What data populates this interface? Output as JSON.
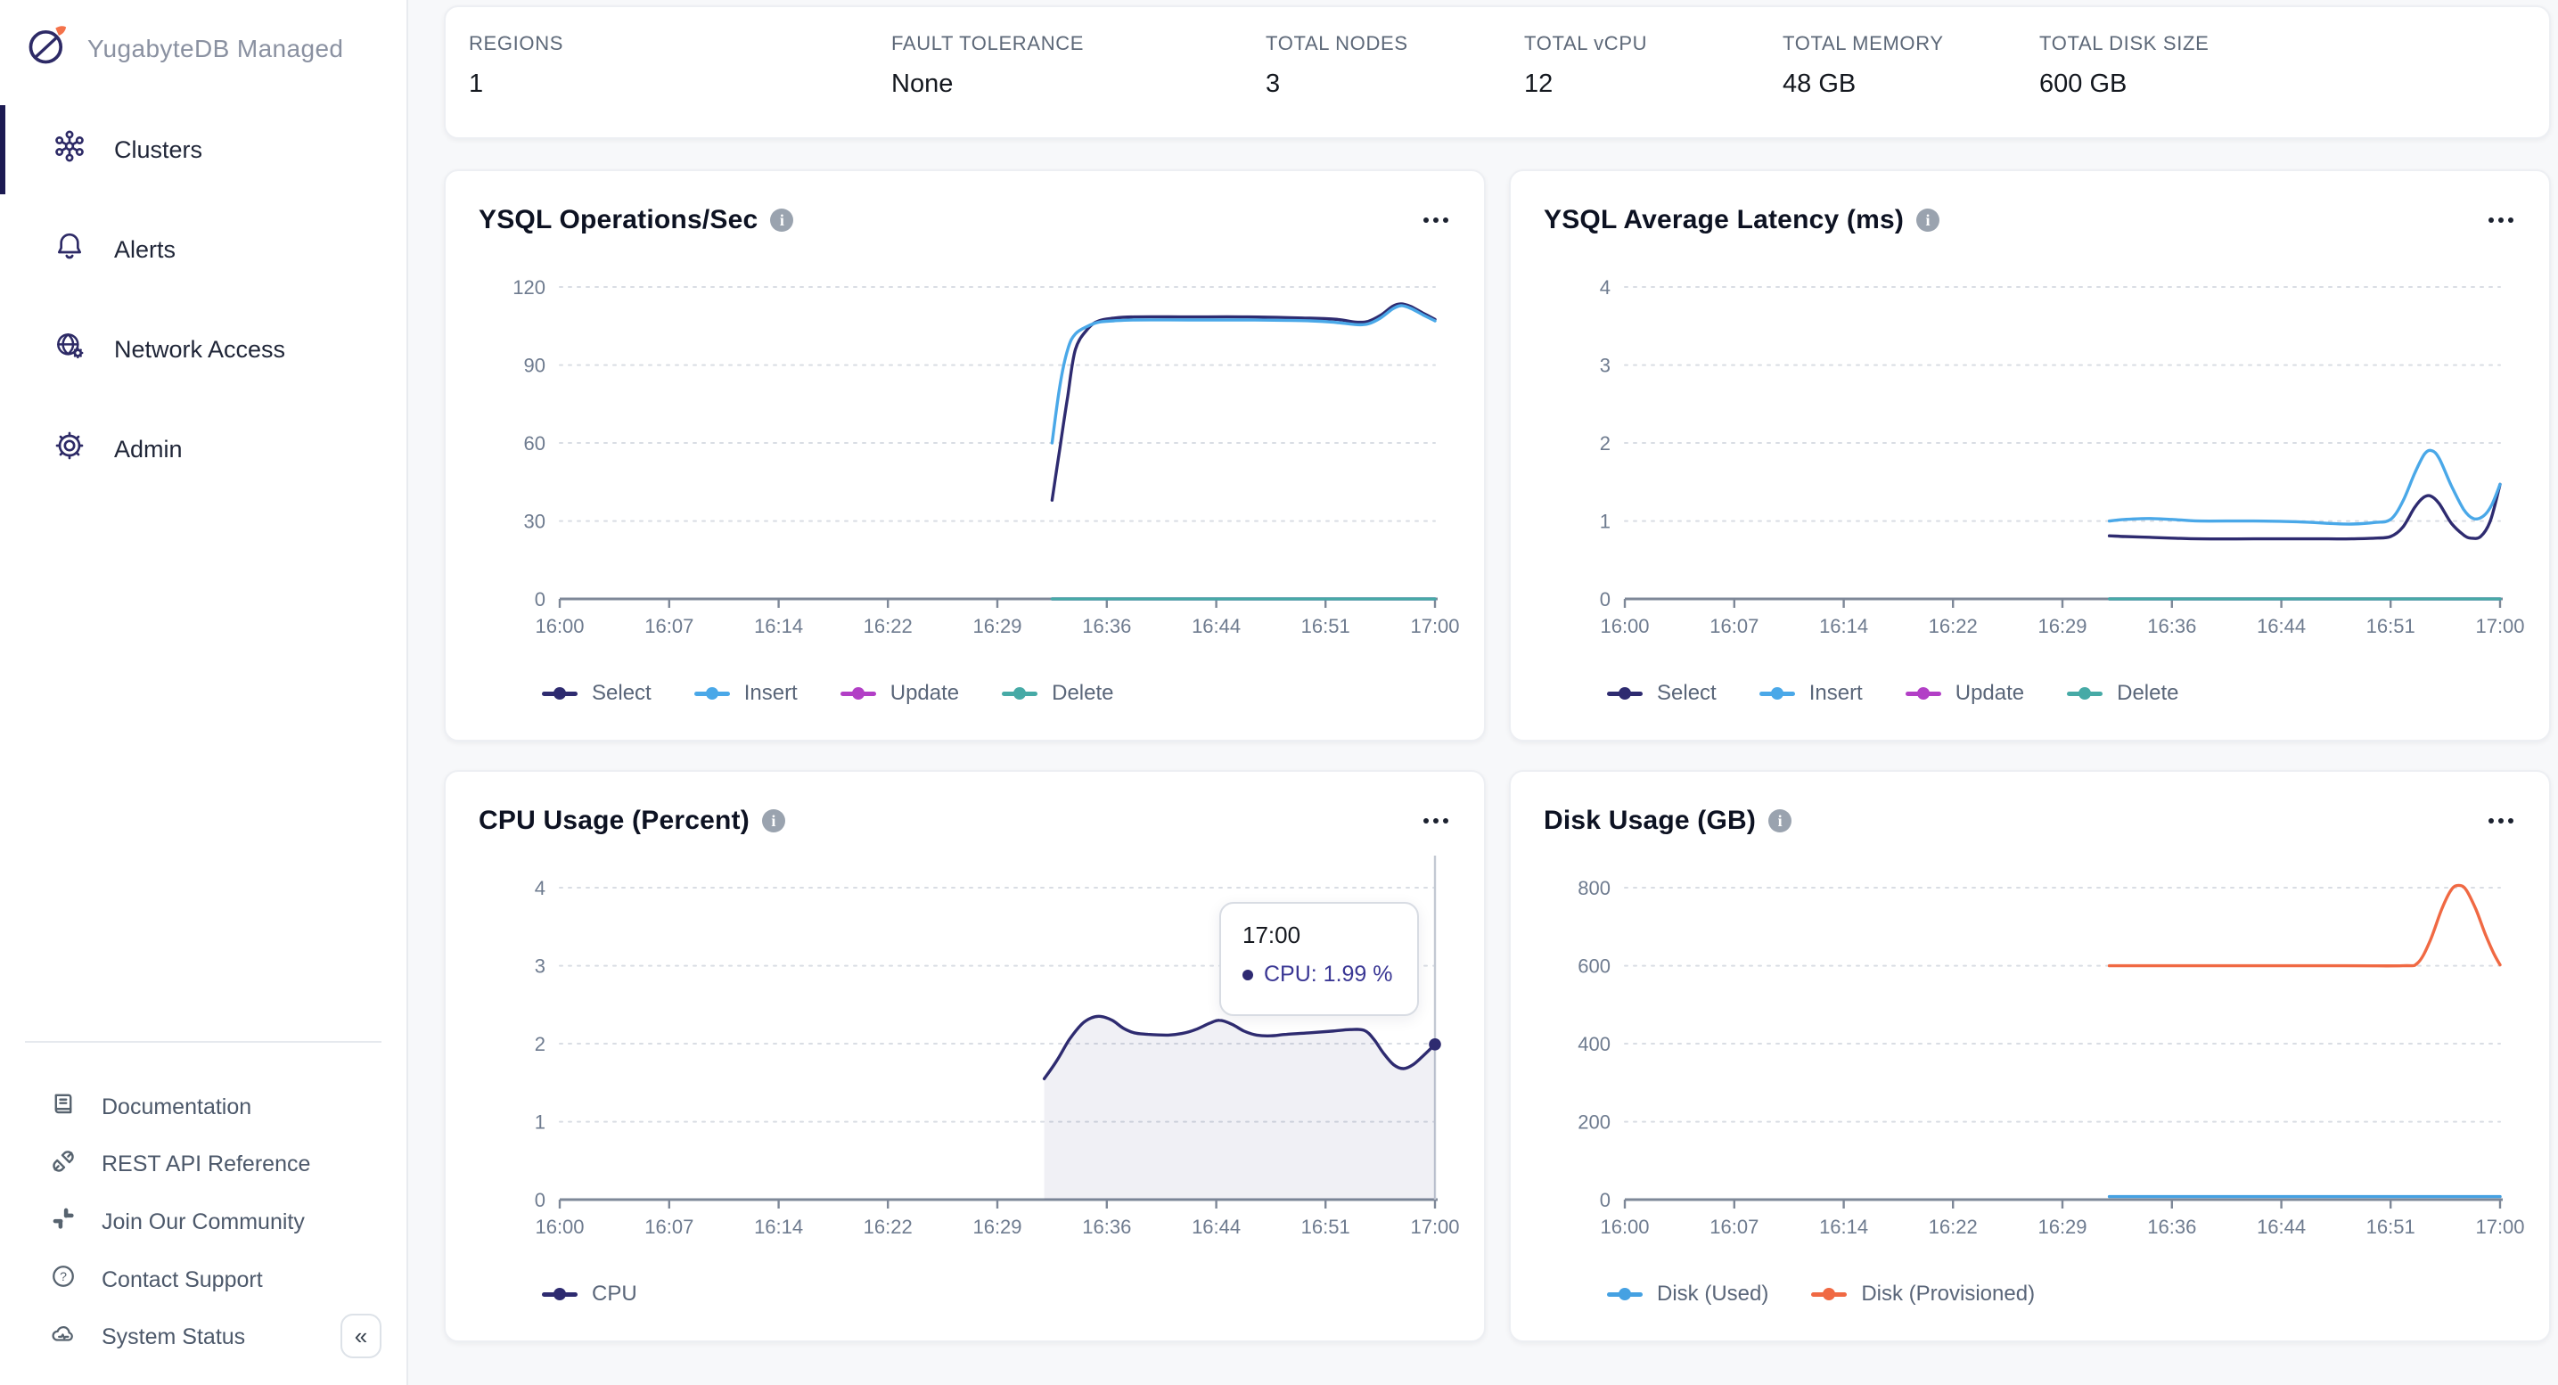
{
  "sidebar": {
    "brand": "YugabyteDB Managed",
    "logo_icon": "yugabytedb-logo",
    "nav": [
      {
        "label": "Clusters",
        "icon": "clusters-icon",
        "active": true
      },
      {
        "label": "Alerts",
        "icon": "alerts-icon",
        "active": false
      },
      {
        "label": "Network Access",
        "icon": "network-access-icon",
        "active": false
      },
      {
        "label": "Admin",
        "icon": "admin-gear-icon",
        "active": false
      }
    ],
    "footer": [
      {
        "label": "Documentation",
        "icon": "documentation-icon"
      },
      {
        "label": "REST API Reference",
        "icon": "rest-api-icon"
      },
      {
        "label": "Join Our Community",
        "icon": "community-slack-icon"
      },
      {
        "label": "Contact Support",
        "icon": "contact-support-icon"
      },
      {
        "label": "System Status",
        "icon": "system-status-icon"
      }
    ],
    "collapse_icon": "«"
  },
  "stats": {
    "items": [
      {
        "label": "REGIONS",
        "value": "1"
      },
      {
        "label": "FAULT TOLERANCE",
        "value": "None"
      },
      {
        "label": "TOTAL NODES",
        "value": "3"
      },
      {
        "label": "TOTAL vCPU",
        "value": "12"
      },
      {
        "label": "TOTAL MEMORY",
        "value": "48 GB"
      },
      {
        "label": "TOTAL DISK SIZE",
        "value": "600 GB"
      }
    ]
  },
  "colors": {
    "select": "#2e2b70",
    "insert": "#4aa8e8",
    "update": "#b23fc6",
    "delete": "#46aaa6",
    "cpu": "#2e2b70",
    "cpu_area": "rgba(46,43,114,0.07)",
    "disk_used": "#45a1e2",
    "disk_provisioned": "#f06943",
    "axis_line": "#7e8898",
    "gridline": "#d9dde4",
    "crosshair": "#c3c9d3",
    "page_bg": "#f7f8fa",
    "active_nav_bar": "#1c1a52"
  },
  "chart_data": [
    {
      "type": "line",
      "title": "YSQL Operations/Sec",
      "info_icon": "info-icon",
      "menu_icon": "ellipsis-menu-icon",
      "x_tick_labels": [
        "16:00",
        "16:07",
        "16:14",
        "16:22",
        "16:29",
        "16:36",
        "16:44",
        "16:51",
        "17:00"
      ],
      "x_tick_minutes": [
        0,
        7,
        14,
        22,
        29,
        36,
        44,
        51,
        60
      ],
      "ylim": [
        0,
        120
      ],
      "y_ticks": [
        0,
        30,
        60,
        90,
        120
      ],
      "grid": "dotted-horizontal",
      "legend_position": "bottom-left",
      "series": [
        {
          "name": "Select",
          "color": "#2e2b70",
          "points": [
            [
              32.5,
              38
            ],
            [
              33,
              58
            ],
            [
              33.5,
              78
            ],
            [
              34,
              96
            ],
            [
              34.8,
              104
            ],
            [
              35.5,
              107
            ],
            [
              36.5,
              108
            ],
            [
              38,
              108.5
            ],
            [
              42,
              108.5
            ],
            [
              46,
              108.5
            ],
            [
              50,
              108
            ],
            [
              52,
              107.5
            ],
            [
              53.5,
              106.5
            ],
            [
              54.5,
              106.8
            ],
            [
              55.5,
              109
            ],
            [
              56.5,
              112.5
            ],
            [
              57.2,
              113.5
            ],
            [
              58,
              112.5
            ],
            [
              59,
              110
            ],
            [
              60,
              107.5
            ]
          ]
        },
        {
          "name": "Insert",
          "color": "#4aa8e8",
          "points": [
            [
              32.5,
              60
            ],
            [
              33,
              82
            ],
            [
              33.5,
              96
            ],
            [
              34,
              102
            ],
            [
              34.8,
              105
            ],
            [
              35.5,
              106.5
            ],
            [
              36.5,
              107
            ],
            [
              38,
              107.3
            ],
            [
              42,
              107.3
            ],
            [
              46,
              107.3
            ],
            [
              50,
              107
            ],
            [
              52,
              106.3
            ],
            [
              53.5,
              105.5
            ],
            [
              54.5,
              105.8
            ],
            [
              55.5,
              108
            ],
            [
              56.5,
              111.5
            ],
            [
              57.2,
              112.8
            ],
            [
              58,
              111.8
            ],
            [
              59,
              109.3
            ],
            [
              60,
              107
            ]
          ]
        },
        {
          "name": "Update",
          "color": "#b23fc6",
          "points": [
            [
              32.5,
              0
            ],
            [
              60,
              0
            ]
          ]
        },
        {
          "name": "Delete",
          "color": "#46aaa6",
          "points": [
            [
              32.5,
              0
            ],
            [
              60,
              0
            ]
          ]
        }
      ]
    },
    {
      "type": "line",
      "title": "YSQL Average Latency (ms)",
      "info_icon": "info-icon",
      "menu_icon": "ellipsis-menu-icon",
      "x_tick_labels": [
        "16:00",
        "16:07",
        "16:14",
        "16:22",
        "16:29",
        "16:36",
        "16:44",
        "16:51",
        "17:00"
      ],
      "x_tick_minutes": [
        0,
        7,
        14,
        22,
        29,
        36,
        44,
        51,
        60
      ],
      "ylim": [
        0,
        4
      ],
      "y_ticks": [
        0,
        1,
        2,
        3,
        4
      ],
      "grid": "dotted-horizontal",
      "legend_position": "bottom-left",
      "series": [
        {
          "name": "Select",
          "color": "#2e2b70",
          "points": [
            [
              32,
              0.81
            ],
            [
              33,
              0.8
            ],
            [
              34.5,
              0.79
            ],
            [
              36,
              0.78
            ],
            [
              38,
              0.77
            ],
            [
              42,
              0.77
            ],
            [
              45,
              0.77
            ],
            [
              47,
              0.77
            ],
            [
              48.5,
              0.77
            ],
            [
              50,
              0.78
            ],
            [
              51,
              0.8
            ],
            [
              52,
              0.92
            ],
            [
              53,
              1.18
            ],
            [
              53.7,
              1.3
            ],
            [
              54.3,
              1.32
            ],
            [
              55,
              1.22
            ],
            [
              56,
              0.97
            ],
            [
              57,
              0.82
            ],
            [
              57.6,
              0.78
            ],
            [
              58.4,
              0.8
            ],
            [
              59.2,
              1.0
            ],
            [
              60,
              1.47
            ]
          ]
        },
        {
          "name": "Insert",
          "color": "#4aa8e8",
          "points": [
            [
              32,
              1.0
            ],
            [
              33,
              1.02
            ],
            [
              34.5,
              1.03
            ],
            [
              36,
              1.02
            ],
            [
              38,
              1.0
            ],
            [
              42,
              1.0
            ],
            [
              45,
              0.99
            ],
            [
              47,
              0.97
            ],
            [
              48.5,
              0.96
            ],
            [
              50,
              0.98
            ],
            [
              51,
              1.02
            ],
            [
              52,
              1.25
            ],
            [
              53,
              1.62
            ],
            [
              53.8,
              1.86
            ],
            [
              54.4,
              1.9
            ],
            [
              55,
              1.8
            ],
            [
              56,
              1.45
            ],
            [
              57,
              1.15
            ],
            [
              57.8,
              1.03
            ],
            [
              58.6,
              1.06
            ],
            [
              59.3,
              1.2
            ],
            [
              60,
              1.47
            ]
          ]
        },
        {
          "name": "Update",
          "color": "#b23fc6",
          "points": [
            [
              32,
              0
            ],
            [
              60,
              0
            ]
          ]
        },
        {
          "name": "Delete",
          "color": "#46aaa6",
          "points": [
            [
              32,
              0
            ],
            [
              60,
              0
            ]
          ]
        }
      ]
    },
    {
      "type": "line",
      "title": "CPU Usage (Percent)",
      "info_icon": "info-icon",
      "menu_icon": "ellipsis-menu-icon",
      "x_tick_labels": [
        "16:00",
        "16:07",
        "16:14",
        "16:22",
        "16:29",
        "16:36",
        "16:44",
        "16:51",
        "17:00"
      ],
      "x_tick_minutes": [
        0,
        7,
        14,
        22,
        29,
        36,
        44,
        51,
        60
      ],
      "ylim": [
        0,
        4
      ],
      "y_ticks": [
        0,
        1,
        2,
        3,
        4
      ],
      "grid": "dotted-horizontal",
      "legend_position": "bottom-left",
      "crosshair_minute": 60,
      "end_dot": {
        "minute": 60,
        "value": 1.99
      },
      "tooltip": {
        "time": "17:00",
        "series_label": "CPU",
        "value_text": "CPU: 1.99 %"
      },
      "series": [
        {
          "name": "CPU",
          "color": "#2e2b70",
          "area": true,
          "area_color": "rgba(46,43,114,0.07)",
          "points": [
            [
              32,
              1.55
            ],
            [
              32.8,
              1.78
            ],
            [
              33.6,
              2.05
            ],
            [
              34.4,
              2.25
            ],
            [
              35,
              2.33
            ],
            [
              35.6,
              2.35
            ],
            [
              36.4,
              2.3
            ],
            [
              37.2,
              2.2
            ],
            [
              38,
              2.14
            ],
            [
              39,
              2.12
            ],
            [
              40.5,
              2.11
            ],
            [
              41.5,
              2.13
            ],
            [
              42.5,
              2.18
            ],
            [
              43.5,
              2.26
            ],
            [
              44.2,
              2.3
            ],
            [
              45,
              2.25
            ],
            [
              45.8,
              2.16
            ],
            [
              46.6,
              2.11
            ],
            [
              47.5,
              2.1
            ],
            [
              48.5,
              2.12
            ],
            [
              50,
              2.14
            ],
            [
              51.5,
              2.16
            ],
            [
              53,
              2.18
            ],
            [
              54.2,
              2.17
            ],
            [
              55,
              2.05
            ],
            [
              55.8,
              1.87
            ],
            [
              56.6,
              1.73
            ],
            [
              57.4,
              1.68
            ],
            [
              58.2,
              1.73
            ],
            [
              59,
              1.84
            ],
            [
              60,
              1.99
            ]
          ]
        }
      ]
    },
    {
      "type": "line",
      "title": "Disk Usage (GB)",
      "info_icon": "info-icon",
      "menu_icon": "ellipsis-menu-icon",
      "x_tick_labels": [
        "16:00",
        "16:07",
        "16:14",
        "16:22",
        "16:29",
        "16:36",
        "16:44",
        "16:51",
        "17:00"
      ],
      "x_tick_minutes": [
        0,
        7,
        14,
        22,
        29,
        36,
        44,
        51,
        60
      ],
      "ylim": [
        0,
        800
      ],
      "y_ticks": [
        0,
        200,
        400,
        600,
        800
      ],
      "grid": "dotted-horizontal",
      "legend_position": "bottom-left",
      "series": [
        {
          "name": "Disk (Used)",
          "color": "#45a1e2",
          "points": [
            [
              32,
              8
            ],
            [
              60,
              8
            ]
          ]
        },
        {
          "name": "Disk (Provisioned)",
          "color": "#f06943",
          "points": [
            [
              32,
              600
            ],
            [
              40,
              600
            ],
            [
              48,
              600
            ],
            [
              52,
              600
            ],
            [
              53.2,
              606
            ],
            [
              54.2,
              660
            ],
            [
              55.2,
              745
            ],
            [
              56,
              795
            ],
            [
              56.6,
              806
            ],
            [
              57.2,
              795
            ],
            [
              58,
              745
            ],
            [
              58.8,
              680
            ],
            [
              59.5,
              630
            ],
            [
              60,
              602
            ]
          ]
        }
      ]
    }
  ]
}
